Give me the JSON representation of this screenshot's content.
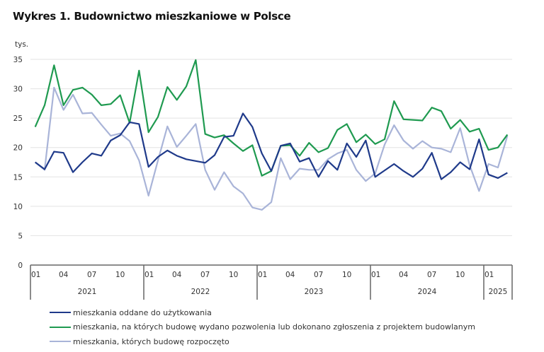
{
  "title": "Wykres 1. Budownictwo mieszkaniowe w Polsce",
  "chart_data": {
    "type": "line",
    "title": "Wykres 1. Budownictwo mieszkaniowe w Polsce",
    "ylabel": "tys.",
    "xlabel": "",
    "ylim": [
      0,
      35
    ],
    "yticks": [
      0,
      5,
      10,
      15,
      20,
      25,
      30,
      35
    ],
    "grid": true,
    "legend_position": "bottom",
    "x": [
      "2021-01",
      "2021-02",
      "2021-03",
      "2021-04",
      "2021-05",
      "2021-06",
      "2021-07",
      "2021-08",
      "2021-09",
      "2021-10",
      "2021-11",
      "2021-12",
      "2022-01",
      "2022-02",
      "2022-03",
      "2022-04",
      "2022-05",
      "2022-06",
      "2022-07",
      "2022-08",
      "2022-09",
      "2022-10",
      "2022-11",
      "2022-12",
      "2023-01",
      "2023-02",
      "2023-03",
      "2023-04",
      "2023-05",
      "2023-06",
      "2023-07",
      "2023-08",
      "2023-09",
      "2023-10",
      "2023-11",
      "2023-12",
      "2024-01",
      "2024-02",
      "2024-03",
      "2024-04",
      "2024-05",
      "2024-06",
      "2024-07",
      "2024-08",
      "2024-09",
      "2024-10",
      "2024-11",
      "2024-12",
      "2025-01",
      "2025-02",
      "2025-03"
    ],
    "month_tick_labels": [
      {
        "index": 0,
        "label": "01"
      },
      {
        "index": 3,
        "label": "04"
      },
      {
        "index": 6,
        "label": "07"
      },
      {
        "index": 9,
        "label": "10"
      },
      {
        "index": 12,
        "label": "01"
      },
      {
        "index": 15,
        "label": "04"
      },
      {
        "index": 18,
        "label": "07"
      },
      {
        "index": 21,
        "label": "10"
      },
      {
        "index": 24,
        "label": "01"
      },
      {
        "index": 27,
        "label": "04"
      },
      {
        "index": 30,
        "label": "07"
      },
      {
        "index": 33,
        "label": "10"
      },
      {
        "index": 36,
        "label": "01"
      },
      {
        "index": 39,
        "label": "04"
      },
      {
        "index": 42,
        "label": "07"
      },
      {
        "index": 45,
        "label": "10"
      },
      {
        "index": 48,
        "label": "01"
      }
    ],
    "year_groups": [
      {
        "label": "2021",
        "start": 0,
        "count": 12
      },
      {
        "label": "2022",
        "start": 12,
        "count": 12
      },
      {
        "label": "2023",
        "start": 24,
        "count": 12
      },
      {
        "label": "2024",
        "start": 36,
        "count": 12
      },
      {
        "label": "2025",
        "start": 48,
        "count": 3
      }
    ],
    "series": [
      {
        "name": "mieszkania oddane do użytkowania",
        "color": "#1f3a8a",
        "values": [
          17.5,
          16.3,
          19.3,
          19.1,
          15.8,
          17.5,
          19.0,
          18.6,
          21.2,
          22.1,
          24.3,
          24.0,
          16.7,
          18.4,
          19.5,
          18.6,
          18.0,
          17.7,
          17.4,
          18.7,
          21.8,
          22.0,
          25.8,
          23.5,
          19.0,
          16.0,
          20.3,
          20.7,
          17.6,
          18.2,
          15.0,
          17.7,
          16.2,
          20.7,
          18.4,
          21.2,
          15.0,
          16.1,
          17.2,
          16.0,
          15.0,
          16.4,
          19.1,
          14.6,
          15.8,
          17.5,
          16.3,
          21.4,
          15.4,
          14.8,
          15.7
        ]
      },
      {
        "name": "mieszkania, na których budowę wydano pozwolenia lub dokonano zgłoszenia z projektem budowlanym",
        "color": "#1f9a50",
        "values": [
          23.5,
          27.2,
          34.0,
          27.2,
          29.8,
          30.2,
          29.0,
          27.2,
          27.4,
          28.9,
          24.2,
          33.1,
          22.6,
          25.2,
          30.3,
          28.1,
          30.4,
          34.9,
          22.3,
          21.7,
          22.1,
          20.7,
          19.4,
          20.4,
          15.2,
          16.0,
          20.3,
          20.4,
          18.6,
          20.8,
          19.2,
          19.9,
          23.0,
          24.0,
          20.9,
          22.2,
          20.6,
          21.4,
          27.9,
          24.8,
          24.7,
          24.6,
          26.8,
          26.2,
          23.2,
          24.7,
          22.7,
          23.2,
          19.6,
          20.0,
          22.2
        ]
      },
      {
        "name": "mieszkania, których budowę rozpoczęto",
        "color": "#a9b4d8",
        "values": [
          17.5,
          16.2,
          30.2,
          26.4,
          29.0,
          25.8,
          25.9,
          23.9,
          22.0,
          22.4,
          21.1,
          17.8,
          11.8,
          17.8,
          23.6,
          20.1,
          22.0,
          24.0,
          16.2,
          12.8,
          15.8,
          13.4,
          12.2,
          9.8,
          9.4,
          10.7,
          18.2,
          14.6,
          16.4,
          16.2,
          16.2,
          18.0,
          19.0,
          19.6,
          16.2,
          14.3,
          15.6,
          20.5,
          23.8,
          21.2,
          19.8,
          21.1,
          20.0,
          19.8,
          19.2,
          23.3,
          17.0,
          12.6,
          17.2,
          16.6,
          22.0
        ]
      }
    ]
  },
  "colors": {
    "grid": "#e3e3e3",
    "axis": "#666666"
  }
}
